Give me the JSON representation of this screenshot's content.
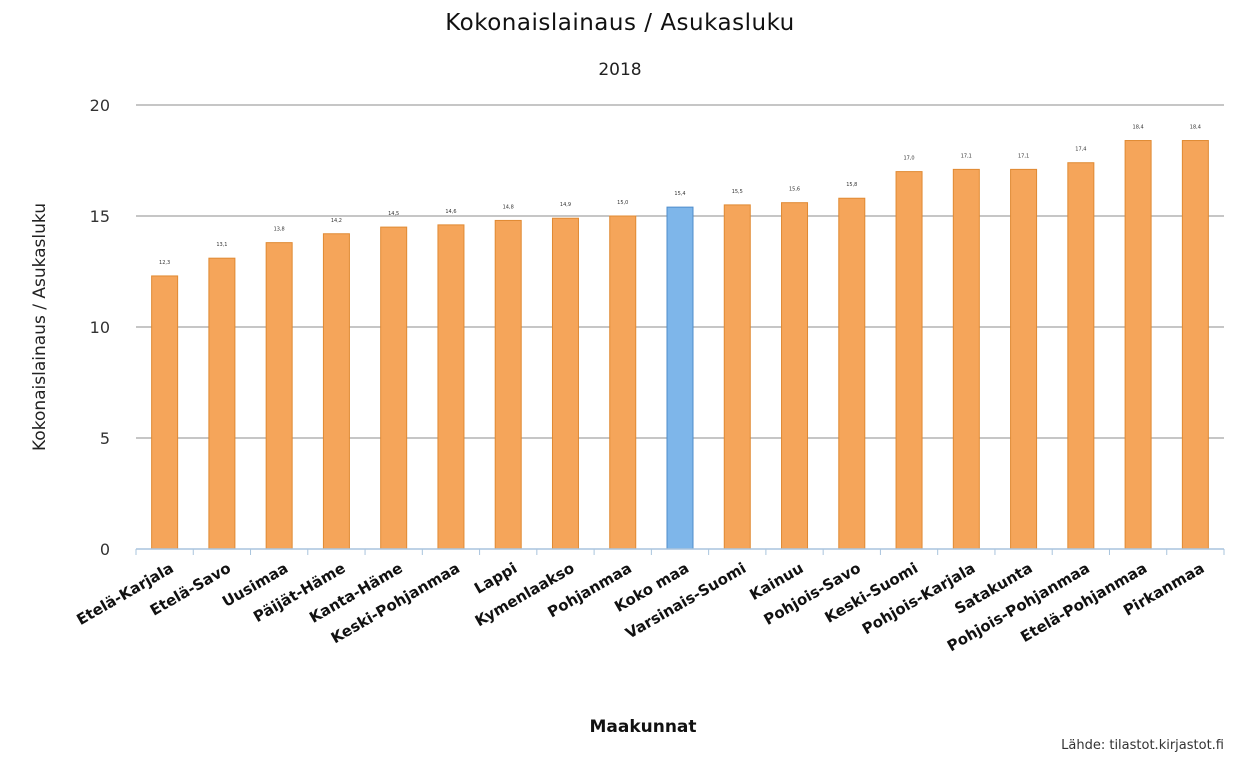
{
  "chart_data": {
    "type": "bar",
    "title": "Kokonaislainaus / Asukasluku",
    "subtitle": "2018",
    "xlabel": "Maakunnat",
    "ylabel": "Kokonaislainaus / Asukasluku",
    "ylim": [
      0,
      20
    ],
    "yticks": [
      0,
      5,
      10,
      15,
      20
    ],
    "grid": true,
    "categories": [
      "Etelä-Karjala",
      "Etelä-Savo",
      "Uusimaa",
      "Päijät-Häme",
      "Kanta-Häme",
      "Keski-Pohjanmaa",
      "Lappi",
      "Kymenlaakso",
      "Pohjanmaa",
      "Koko maa",
      "Varsinais-Suomi",
      "Kainuu",
      "Pohjois-Savo",
      "Keski-Suomi",
      "Pohjois-Karjala",
      "Satakunta",
      "Pohjois-Pohjanmaa",
      "Etelä-Pohjanmaa",
      "Pirkanmaa"
    ],
    "values": [
      12.3,
      13.1,
      13.8,
      14.2,
      14.5,
      14.6,
      14.8,
      14.9,
      15.0,
      15.4,
      15.5,
      15.6,
      15.8,
      17.0,
      17.1,
      17.1,
      17.4,
      18.4,
      18.4
    ],
    "data_labels": [
      "12,3",
      "13,1",
      "13,8",
      "14,2",
      "14,5",
      "14,6",
      "14,8",
      "14,9",
      "15,0",
      "15,4",
      "15,5",
      "15,6",
      "15,8",
      "17,0",
      "17,1",
      "17,1",
      "17,4",
      "18,4",
      "18,4"
    ],
    "highlight_index": 9,
    "colors": {
      "bar": "#F5A55A",
      "bar_border": "#E08A33",
      "highlight": "#7EB6EA",
      "highlight_border": "#4F8CCB",
      "grid": "#8C8C8C"
    }
  },
  "source_note": "Lähde: tilastot.kirjastot.fi"
}
